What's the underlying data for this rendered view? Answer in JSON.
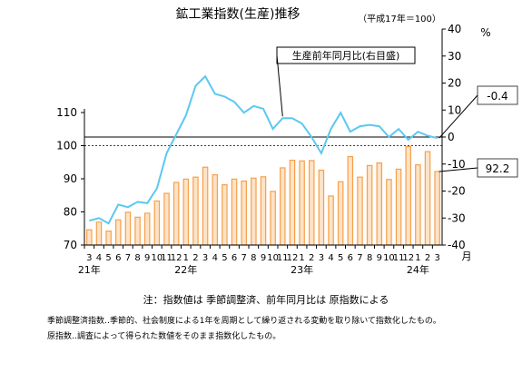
{
  "chart_data": {
    "type": "bar+line",
    "title": "鉱工業指数(生産)推移",
    "base_note": "（平成17年＝100）",
    "left_axis": {
      "range": [
        70,
        110
      ],
      "ticks": [
        "70",
        "80",
        "90",
        "100",
        "110"
      ]
    },
    "right_axis": {
      "unit": "%",
      "range": [
        -40,
        40
      ],
      "ticks": [
        "40",
        "30",
        "20",
        "10",
        "0",
        "-10",
        "-20",
        "-30",
        "-40"
      ]
    },
    "x_unit": "月",
    "months": [
      "3",
      "4",
      "5",
      "6",
      "7",
      "8",
      "9",
      "10",
      "11",
      "12",
      "1",
      "2",
      "3",
      "4",
      "5",
      "6",
      "7",
      "8",
      "9",
      "10",
      "11",
      "12",
      "1",
      "2",
      "3",
      "4",
      "5",
      "6",
      "7",
      "8",
      "9",
      "10",
      "11",
      "12",
      "1",
      "2",
      "3"
    ],
    "year_labels": [
      {
        "index": 0,
        "label": "21年"
      },
      {
        "index": 10,
        "label": "22年"
      },
      {
        "index": 22,
        "label": "23年"
      },
      {
        "index": 34,
        "label": "24年"
      }
    ],
    "series": [
      {
        "kind": "bar",
        "values": [
          74.6,
          76.9,
          74.2,
          77.6,
          79.9,
          78.4,
          79.6,
          83.3,
          85.6,
          88.9,
          89.9,
          90.5,
          93.5,
          91.2,
          88.2,
          89.9,
          89.3,
          90.2,
          90.6,
          86.2,
          93.3,
          95.6,
          95.4,
          95.5,
          92.6,
          84.8,
          89.1,
          96.7,
          90.5,
          94.0,
          94.8,
          89.8,
          92.9,
          99.7,
          94.2,
          98.2,
          92.2
        ],
        "color": "#f5a04c",
        "latest_label": "92.2"
      },
      {
        "kind": "line",
        "name": "生産前年同月比(右目盛)",
        "values": [
          -31,
          -30,
          -32,
          -25,
          -26,
          -24,
          -24.5,
          -19,
          -6,
          1,
          8,
          19,
          22.5,
          16,
          15,
          13,
          9,
          11.5,
          10.5,
          3,
          7,
          7,
          5,
          0,
          -6,
          3,
          9,
          2,
          4,
          4.5,
          4,
          0,
          3,
          -1,
          2,
          0.5,
          -0.4
        ],
        "color": "#5bc8f0",
        "latest_label": "-0.4"
      }
    ],
    "reference_lines": [
      {
        "axis": "right",
        "value": 0,
        "style": "solid"
      },
      {
        "axis": "left",
        "value": 100,
        "style": "dashed"
      }
    ]
  },
  "notes": {
    "main": "注：指数値は 季節調整済、前年同月比は 原指数による",
    "line1": "季節調整済指数‥季節的、社会制度による1年を周期として繰り返される変動を取り除いて指数化したもの。",
    "line2": "原指数‥調査によって得られた数値をそのまま指数化したもの。"
  }
}
